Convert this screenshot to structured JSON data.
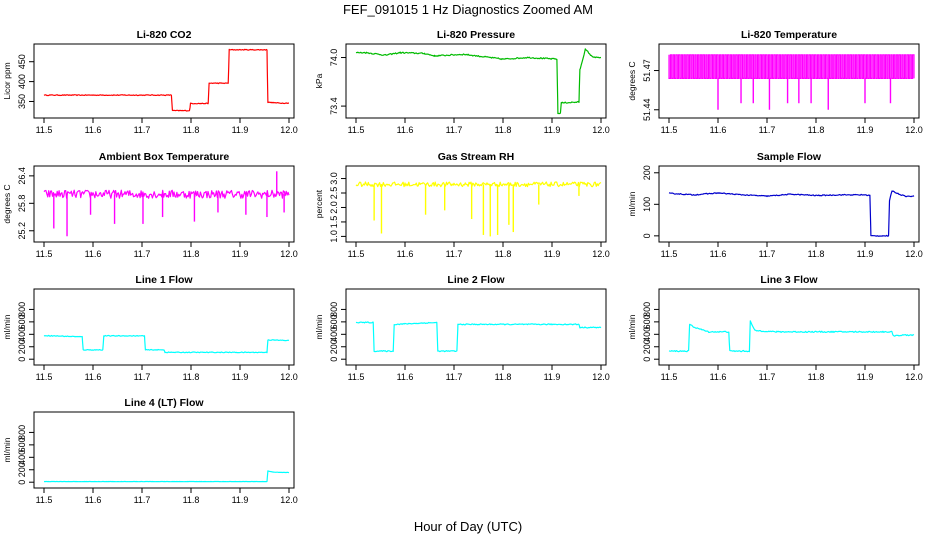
{
  "figure": {
    "title": "FEF_091015  1 Hz Diagnostics Zoomed AM",
    "xlabel": "Hour of Day (UTC)"
  },
  "chart_data": [
    {
      "type": "line",
      "title": "Li-820 CO2",
      "ylabel": "Licor ppm",
      "color": "#ff0000",
      "xlim": [
        11.5,
        12.0
      ],
      "xticks": [
        "11.5",
        "11.6",
        "11.7",
        "11.8",
        "11.9",
        "12.0"
      ],
      "ylim": [
        316,
        487
      ],
      "yticks": [
        "350",
        "400",
        "450"
      ],
      "noise": 1,
      "x": [
        11.5,
        11.76,
        11.762,
        11.797,
        11.799,
        11.835,
        11.837,
        11.876,
        11.878,
        11.955,
        11.957,
        11.98,
        12.0
      ],
      "y": [
        366,
        366,
        327,
        327,
        345,
        345,
        396,
        396,
        480,
        480,
        348,
        346,
        346
      ]
    },
    {
      "type": "line",
      "title": "Li-820 Pressure",
      "ylabel": "kPa",
      "color": "#00bb00",
      "xlim": [
        11.5,
        12.0
      ],
      "xticks": [
        "11.5",
        "11.6",
        "11.7",
        "11.8",
        "11.9",
        "12.0"
      ],
      "ylim": [
        73.29,
        74.13
      ],
      "yticks": [
        "73.4",
        "74.0"
      ],
      "noise": 0.008,
      "x": [
        11.5,
        11.52,
        11.56,
        11.59,
        11.64,
        11.66,
        11.72,
        11.76,
        11.8,
        11.85,
        11.88,
        11.91,
        11.912,
        11.917,
        11.919,
        11.955,
        11.957,
        11.968,
        11.975,
        11.98,
        11.99,
        12.0
      ],
      "y": [
        74.06,
        74.06,
        74.03,
        74.06,
        74.05,
        74.02,
        74.04,
        74.01,
        73.98,
        74.0,
        73.99,
        73.98,
        73.31,
        73.31,
        73.44,
        73.45,
        73.85,
        74.1,
        74.06,
        74.02,
        74.0,
        74.0
      ]
    },
    {
      "type": "line",
      "title": "Li-820 Temperature",
      "ylabel": "degrees C",
      "color": "#ff00ff",
      "xlim": [
        11.5,
        12.0
      ],
      "xticks": [
        "11.5",
        "11.6",
        "11.7",
        "11.8",
        "11.9",
        "12.0"
      ],
      "ylim": [
        51.436,
        51.488
      ],
      "yticks": [
        "51.44",
        "51.47"
      ],
      "noise": 0,
      "x": [
        11.5,
        12.0
      ],
      "y": [
        51.464,
        51.464
      ],
      "band": [
        51.464,
        51.482
      ],
      "spikes": [
        {
          "x": 11.6,
          "y": 51.44
        },
        {
          "x": 11.647,
          "y": 51.445
        },
        {
          "x": 11.672,
          "y": 51.445
        },
        {
          "x": 11.705,
          "y": 51.44
        },
        {
          "x": 11.742,
          "y": 51.445
        },
        {
          "x": 11.765,
          "y": 51.445
        },
        {
          "x": 11.79,
          "y": 51.445
        },
        {
          "x": 11.825,
          "y": 51.44
        },
        {
          "x": 11.9,
          "y": 51.445
        },
        {
          "x": 11.952,
          "y": 51.445
        }
      ]
    },
    {
      "type": "line",
      "title": "Ambient Box Temperature",
      "ylabel": "degrees C",
      "color": "#ff00ff",
      "xlim": [
        11.5,
        12.0
      ],
      "xticks": [
        "11.5",
        "11.6",
        "11.7",
        "11.8",
        "11.9",
        "12.0"
      ],
      "ylim": [
        25.02,
        26.55
      ],
      "yticks": [
        "25.2",
        "25.8",
        "26.4"
      ],
      "noise": 0.09,
      "x": [
        11.5,
        12.0
      ],
      "y": [
        26.0,
        26.0
      ],
      "spikes": [
        {
          "x": 11.52,
          "y": 25.25
        },
        {
          "x": 11.547,
          "y": 25.08
        },
        {
          "x": 11.595,
          "y": 25.55
        },
        {
          "x": 11.644,
          "y": 25.35
        },
        {
          "x": 11.702,
          "y": 25.35
        },
        {
          "x": 11.742,
          "y": 25.5
        },
        {
          "x": 11.807,
          "y": 25.4
        },
        {
          "x": 11.855,
          "y": 25.6
        },
        {
          "x": 11.912,
          "y": 25.55
        },
        {
          "x": 11.955,
          "y": 25.5
        },
        {
          "x": 11.975,
          "y": 26.5
        },
        {
          "x": 11.99,
          "y": 25.6
        }
      ]
    },
    {
      "type": "line",
      "title": "Gas Stream RH",
      "ylabel": "percent",
      "color": "#ffff00",
      "xlim": [
        11.5,
        12.0
      ],
      "xticks": [
        "11.5",
        "11.6",
        "11.7",
        "11.8",
        "11.9",
        "12.0"
      ],
      "ylim": [
        0.91,
        3.33
      ],
      "yticks": [
        "1.0",
        "1.5",
        "2.0",
        "2.5",
        "3.0"
      ],
      "noise": 0.08,
      "x": [
        11.5,
        12.0
      ],
      "y": [
        2.8,
        2.8
      ],
      "spikes": [
        {
          "x": 11.537,
          "y": 1.55
        },
        {
          "x": 11.552,
          "y": 1.1
        },
        {
          "x": 11.642,
          "y": 1.75
        },
        {
          "x": 11.681,
          "y": 1.9
        },
        {
          "x": 11.736,
          "y": 1.6
        },
        {
          "x": 11.76,
          "y": 1.05
        },
        {
          "x": 11.774,
          "y": 1.0
        },
        {
          "x": 11.789,
          "y": 1.05
        },
        {
          "x": 11.812,
          "y": 1.4
        },
        {
          "x": 11.821,
          "y": 1.15
        },
        {
          "x": 11.873,
          "y": 2.1
        },
        {
          "x": 11.955,
          "y": 2.4
        }
      ]
    },
    {
      "type": "line",
      "title": "Sample Flow",
      "ylabel": "ml/min",
      "color": "#0000cc",
      "xlim": [
        11.5,
        12.0
      ],
      "xticks": [
        "11.5",
        "11.6",
        "11.7",
        "11.8",
        "11.9",
        "12.0"
      ],
      "ylim": [
        -10,
        212
      ],
      "yticks": [
        "0",
        "100",
        "200"
      ],
      "noise": 1.5,
      "x": [
        11.5,
        11.55,
        11.6,
        11.65,
        11.7,
        11.75,
        11.8,
        11.85,
        11.9,
        11.91,
        11.912,
        11.948,
        11.95,
        11.955,
        11.97,
        11.985,
        12.0
      ],
      "y": [
        135,
        130,
        136,
        130,
        126,
        132,
        128,
        130,
        130,
        128,
        0,
        0,
        110,
        143,
        132,
        125,
        126
      ]
    },
    {
      "type": "line",
      "title": "Line 1 Flow",
      "ylabel": "ml/min",
      "color": "#00ffff",
      "xlim": [
        11.5,
        12.0
      ],
      "xticks": [
        "11.5",
        "11.6",
        "11.7",
        "11.8",
        "11.9",
        "12.0"
      ],
      "ylim": [
        -45,
        1080
      ],
      "yticks": [
        "0",
        "200",
        "400",
        "600",
        "800"
      ],
      "noise": 6,
      "x": [
        11.5,
        11.578,
        11.58,
        11.62,
        11.622,
        11.705,
        11.707,
        11.745,
        11.747,
        11.955,
        11.957,
        12.0
      ],
      "y": [
        380,
        360,
        150,
        150,
        375,
        375,
        150,
        150,
        110,
        110,
        310,
        300
      ]
    },
    {
      "type": "line",
      "title": "Line 2 Flow",
      "ylabel": "ml/min",
      "color": "#00ffff",
      "xlim": [
        11.5,
        12.0
      ],
      "xticks": [
        "11.5",
        "11.6",
        "11.7",
        "11.8",
        "11.9",
        "12.0"
      ],
      "ylim": [
        -45,
        1080
      ],
      "yticks": [
        "0",
        "200",
        "400",
        "600",
        "800"
      ],
      "noise": 8,
      "x": [
        11.5,
        11.535,
        11.537,
        11.576,
        11.578,
        11.665,
        11.667,
        11.706,
        11.708,
        11.955,
        11.957,
        12.0
      ],
      "y": [
        590,
        590,
        130,
        130,
        560,
        590,
        130,
        130,
        560,
        560,
        510,
        510
      ]
    },
    {
      "type": "line",
      "title": "Line 3 Flow",
      "ylabel": "ml/min",
      "color": "#00ffff",
      "xlim": [
        11.5,
        12.0
      ],
      "xticks": [
        "11.5",
        "11.6",
        "11.7",
        "11.8",
        "11.9",
        "12.0"
      ],
      "ylim": [
        -45,
        1080
      ],
      "yticks": [
        "0",
        "200",
        "400",
        "600",
        "800"
      ],
      "noise": 10,
      "x": [
        11.5,
        11.54,
        11.542,
        11.55,
        11.58,
        11.622,
        11.624,
        11.664,
        11.666,
        11.675,
        11.72,
        11.955,
        11.957,
        12.0
      ],
      "y": [
        130,
        130,
        560,
        520,
        440,
        440,
        130,
        130,
        610,
        460,
        440,
        440,
        380,
        390
      ]
    },
    {
      "type": "line",
      "title": "Line 4 (LT) Flow",
      "ylabel": "ml/min",
      "color": "#00ffff",
      "xlim": [
        11.5,
        12.0
      ],
      "xticks": [
        "11.5",
        "11.6",
        "11.7",
        "11.8",
        "11.9",
        "12.0"
      ],
      "ylim": [
        -45,
        1080
      ],
      "yticks": [
        "0",
        "200",
        "400",
        "600",
        "800"
      ],
      "noise": 2,
      "x": [
        11.5,
        11.955,
        11.957,
        11.97,
        12.0
      ],
      "y": [
        10,
        10,
        180,
        160,
        155
      ]
    }
  ]
}
